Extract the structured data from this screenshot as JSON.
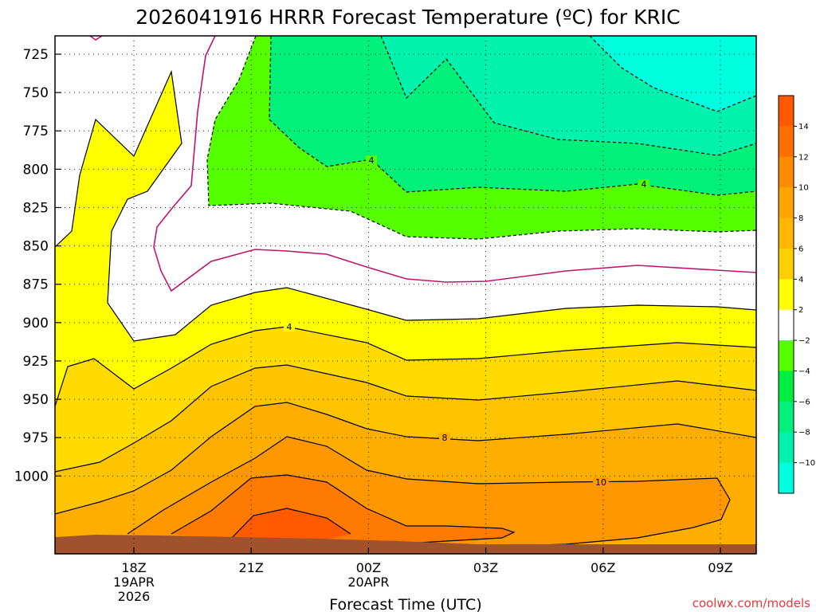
{
  "title": "2026041916 HRRR Forecast Temperature (ºC) for KRIC",
  "credit": "coolwx.com/models",
  "chart_data": {
    "type": "contour",
    "xlabel": "Forecast Time (UTC)",
    "ylabel": "",
    "y_axis": {
      "ticks": [
        "725",
        "750",
        "775",
        "800",
        "825",
        "850",
        "875",
        "900",
        "925",
        "950",
        "975",
        "1000"
      ]
    },
    "x_axis": {
      "ticks": [
        {
          "lines": [
            "18Z",
            "19APR",
            "2026"
          ]
        },
        {
          "lines": [
            "21Z"
          ]
        },
        {
          "lines": [
            "00Z",
            "20APR"
          ]
        },
        {
          "lines": [
            "03Z"
          ]
        },
        {
          "lines": [
            "06Z"
          ]
        },
        {
          "lines": [
            "09Z"
          ]
        }
      ]
    },
    "colorbar": {
      "labels": [
        "14",
        "12",
        "10",
        "8",
        "6",
        "4",
        "2",
        "−2",
        "−4",
        "−6",
        "−8",
        "−10"
      ],
      "colors": [
        "#ff5a00",
        "#ff7000",
        "#ff8b00",
        "#ffa400",
        "#ffb600",
        "#ffcf00",
        "#ffff00",
        "#ffffff",
        "#55ff00",
        "#00ee40",
        "#00f07a",
        "#00f2ad",
        "#00ffdf"
      ]
    },
    "contour_labels": [
      "4",
      "4",
      "4",
      "8",
      "10"
    ],
    "colors": {
      "ground": "#a0522d",
      "zero_line": "#c0146c",
      "fill_warm_14": "#ff5a00",
      "fill_warm_12": "#ff7a00",
      "fill_warm_10": "#ff9800",
      "fill_warm_8": "#ffae00",
      "fill_warm_6": "#ffc400",
      "fill_warm_4": "#ffdb00",
      "fill_warm_2": "#ffff00",
      "fill_cold_0": "#ffffff",
      "fill_cold_n2": "#55ff00",
      "fill_cold_n4": "#00ee40",
      "fill_cold_n6": "#00f07a",
      "fill_cold_n8": "#00f2ad"
    }
  }
}
